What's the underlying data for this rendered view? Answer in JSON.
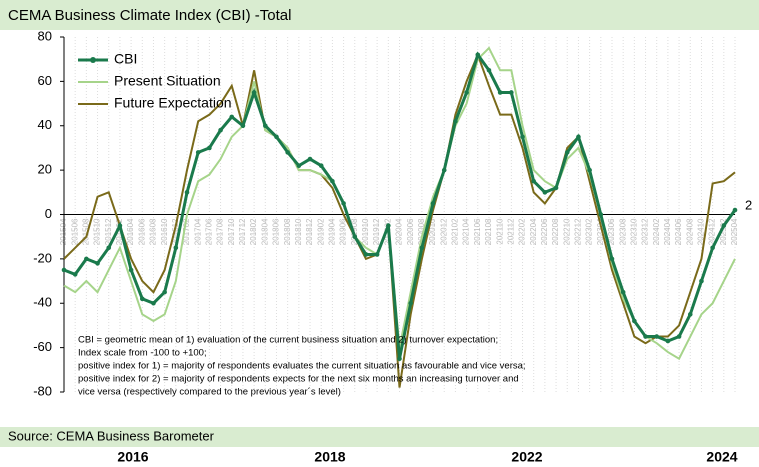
{
  "chart_data": {
    "type": "line",
    "title": "CEMA Business Climate Index (CBI) -Total",
    "source": "Source: CEMA Business Barometer",
    "footer_years": [
      "2016",
      "2018",
      "2022",
      "2024"
    ],
    "annotation": [
      "CBI = geometric mean of 1) evaluation of the current business situation and 2) turnover expectation;",
      "Index scale from -100 to +100;",
      "positive index for 1) = majority of respondents evaluates the current situation as favourable and vice versa;",
      "positive index for 2) = majority of respondents expects for the next six months an increasing turnover and",
      "vice versa (respectively compared to the previous year´s level)"
    ],
    "categories": [
      "201504",
      "201506",
      "201508",
      "201510",
      "201512",
      "201602",
      "201604",
      "201606",
      "201608",
      "201610",
      "201612",
      "201702",
      "201704",
      "201706",
      "201708",
      "201710",
      "201712",
      "201802",
      "201804",
      "201806",
      "201808",
      "201810",
      "201812",
      "201902",
      "201904",
      "201906",
      "201908",
      "201910",
      "201912",
      "202002",
      "202004",
      "202006",
      "202008",
      "202010",
      "202012",
      "202102",
      "202104",
      "202106",
      "202108",
      "202110",
      "202112",
      "202202",
      "202204",
      "202206",
      "202208",
      "202210",
      "202212",
      "202302",
      "202304",
      "202306",
      "202308",
      "202310",
      "202312",
      "202402",
      "202404",
      "202406",
      "202408",
      "202410",
      "202412",
      "202502",
      "202504"
    ],
    "series": [
      {
        "name": "CBI",
        "color": "#1a7a4c",
        "values": [
          -25,
          -27,
          -20,
          -22,
          -15,
          -5,
          -25,
          -38,
          -40,
          -35,
          -15,
          10,
          28,
          30,
          38,
          44,
          40,
          55,
          40,
          35,
          28,
          22,
          25,
          22,
          15,
          5,
          -10,
          -18,
          -18,
          -5,
          -65,
          -40,
          -15,
          5,
          20,
          42,
          55,
          72,
          65,
          55,
          55,
          35,
          15,
          10,
          12,
          28,
          35,
          20,
          0,
          -20,
          -35,
          -48,
          -55,
          -55,
          -57,
          -55,
          -45,
          -30,
          -15,
          -5,
          2
        ]
      },
      {
        "name": "Present Situation",
        "color": "#a6d48a",
        "values": [
          -32,
          -35,
          -30,
          -35,
          -25,
          -15,
          -30,
          -45,
          -48,
          -45,
          -30,
          0,
          15,
          18,
          25,
          35,
          40,
          60,
          38,
          35,
          30,
          20,
          20,
          18,
          15,
          5,
          -10,
          -15,
          -18,
          -5,
          -60,
          -35,
          -10,
          8,
          20,
          40,
          50,
          70,
          75,
          65,
          65,
          40,
          20,
          15,
          12,
          25,
          30,
          18,
          0,
          -22,
          -38,
          -48,
          -55,
          -58,
          -62,
          -65,
          -55,
          -45,
          -40,
          -30,
          -20
        ]
      },
      {
        "name": "Future Expectation",
        "color": "#7a6a1a",
        "values": [
          -20,
          -15,
          -10,
          8,
          10,
          -5,
          -20,
          -30,
          -35,
          -25,
          -5,
          20,
          42,
          45,
          50,
          58,
          40,
          65,
          38,
          35,
          30,
          20,
          20,
          18,
          12,
          0,
          -10,
          -20,
          -18,
          -5,
          -78,
          -45,
          -20,
          2,
          20,
          45,
          60,
          72,
          58,
          45,
          45,
          30,
          10,
          5,
          12,
          30,
          35,
          15,
          -5,
          -25,
          -40,
          -55,
          -58,
          -55,
          -55,
          -50,
          -35,
          -20,
          14,
          15,
          19
        ]
      }
    ],
    "ylim": [
      -80,
      80
    ],
    "yticks": [
      -80,
      -60,
      -40,
      -20,
      0,
      20,
      40,
      60,
      80
    ],
    "grid": true
  }
}
